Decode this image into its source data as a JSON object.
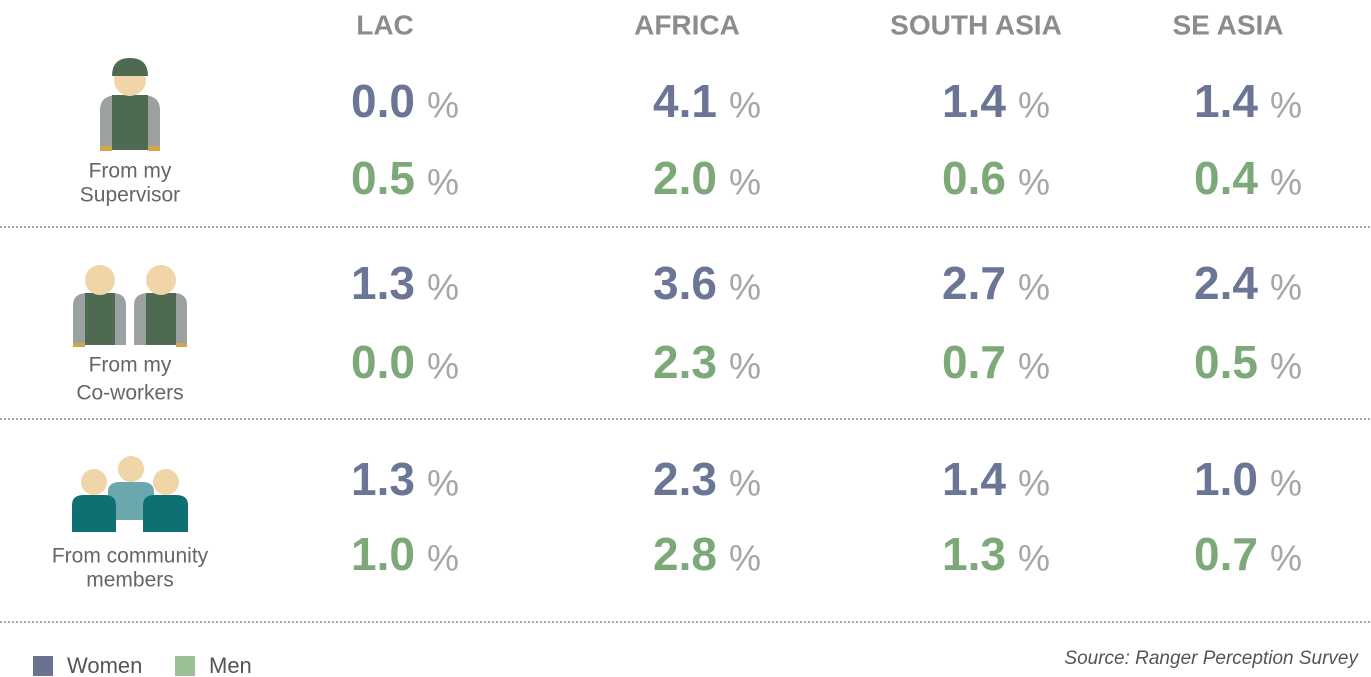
{
  "columns": [
    "LAC",
    "AFRICA",
    "SOUTH ASIA",
    "SE ASIA"
  ],
  "unit": "%",
  "rows": [
    {
      "label": [
        "From my",
        "Supervisor"
      ],
      "women": [
        "0.0",
        "4.1",
        "1.4",
        "1.4"
      ],
      "men": [
        "0.5",
        "2.0",
        "0.6",
        "0.4"
      ]
    },
    {
      "label": [
        "From my",
        "Co-workers"
      ],
      "women": [
        "1.3",
        "3.6",
        "2.7",
        "2.4"
      ],
      "men": [
        "0.0",
        "2.3",
        "0.7",
        "0.5"
      ]
    },
    {
      "label": [
        "From community",
        "members"
      ],
      "women": [
        "1.3",
        "2.3",
        "1.4",
        "1.0"
      ],
      "men": [
        "1.0",
        "2.8",
        "1.3",
        "0.7"
      ]
    }
  ],
  "legend": [
    {
      "name": "Women",
      "color": "#6b7596"
    },
    {
      "name": "Men",
      "color": "#7da978"
    }
  ],
  "legend_swatch_colors": [
    "#6b7290",
    "#9dbf97"
  ],
  "source": "Source: Ranger Perception Survey"
}
